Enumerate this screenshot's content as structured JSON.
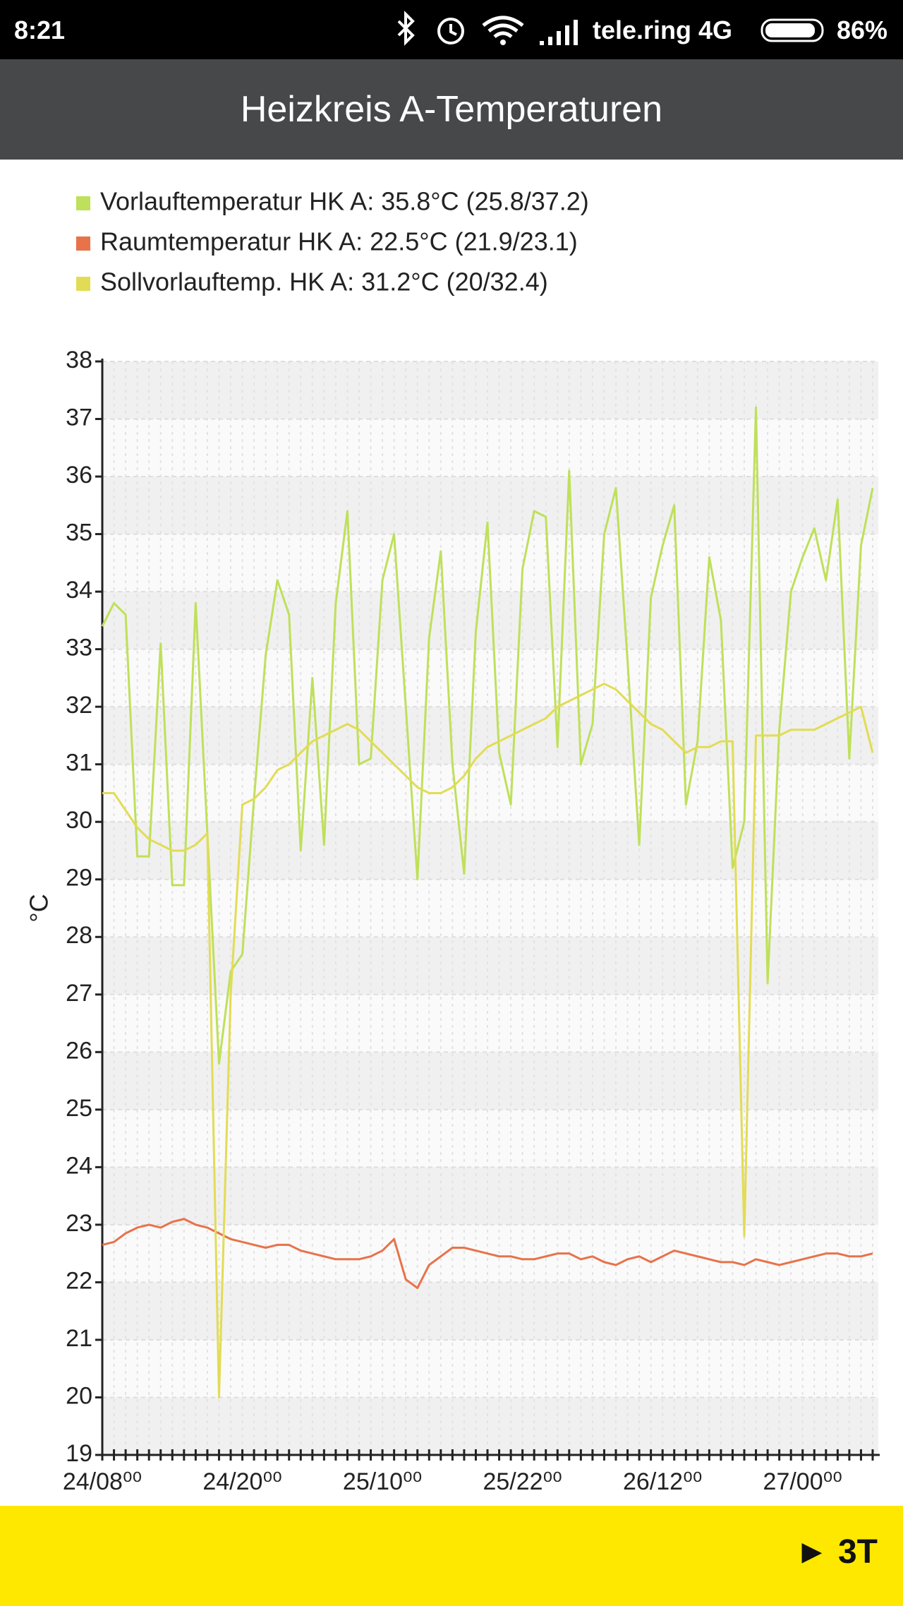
{
  "status_bar": {
    "time": "8:21",
    "carrier": "tele.ring 4G",
    "battery": "86%"
  },
  "header": {
    "title": "Heizkreis A-Temperaturen"
  },
  "chart_data": {
    "type": "line",
    "ylabel": "°C",
    "categories": [
      "24/08⁰⁰",
      null,
      null,
      null,
      null,
      null,
      null,
      null,
      null,
      null,
      null,
      null,
      "24/20⁰⁰",
      null,
      null,
      null,
      null,
      null,
      null,
      null,
      null,
      null,
      null,
      null,
      "25/10⁰⁰",
      null,
      null,
      null,
      null,
      null,
      null,
      null,
      null,
      null,
      null,
      null,
      "25/22⁰⁰",
      null,
      null,
      null,
      null,
      null,
      null,
      null,
      null,
      null,
      null,
      null,
      "26/12⁰⁰",
      null,
      null,
      null,
      null,
      null,
      null,
      null,
      null,
      null,
      null,
      null,
      "27/00⁰⁰",
      null,
      null,
      null,
      null,
      null,
      null
    ],
    "series": [
      {
        "name": "Vorlauftemperatur HK A: 35.8°C (25.8/37.2)",
        "color": "#bfe05a",
        "values": [
          33.4,
          33.8,
          33.6,
          29.4,
          29.4,
          33.1,
          28.9,
          28.9,
          33.8,
          29.8,
          25.8,
          27.4,
          27.7,
          30.4,
          32.9,
          34.2,
          33.6,
          29.5,
          32.5,
          29.6,
          33.8,
          35.4,
          31.0,
          31.1,
          34.2,
          35.0,
          32.0,
          29.0,
          33.2,
          34.7,
          31.0,
          29.1,
          33.3,
          35.2,
          31.2,
          30.3,
          34.4,
          35.4,
          35.3,
          31.3,
          36.1,
          31.0,
          31.7,
          35.0,
          35.8,
          32.8,
          29.6,
          33.9,
          34.8,
          35.5,
          30.3,
          31.4,
          34.6,
          33.5,
          29.2,
          30.0,
          37.2,
          27.2,
          31.6,
          34.0,
          34.6,
          35.1,
          34.2,
          35.6,
          31.1,
          34.8,
          35.8
        ]
      },
      {
        "name": "Raumtemperatur HK A: 22.5°C (21.9/23.1)",
        "color": "#e8724a",
        "values": [
          22.65,
          22.7,
          22.85,
          22.95,
          23.0,
          22.95,
          23.05,
          23.1,
          23.0,
          22.95,
          22.85,
          22.75,
          22.7,
          22.65,
          22.6,
          22.65,
          22.65,
          22.55,
          22.5,
          22.45,
          22.4,
          22.4,
          22.4,
          22.45,
          22.55,
          22.75,
          22.05,
          21.9,
          22.3,
          22.45,
          22.6,
          22.6,
          22.55,
          22.5,
          22.45,
          22.45,
          22.4,
          22.4,
          22.45,
          22.5,
          22.5,
          22.4,
          22.45,
          22.35,
          22.3,
          22.4,
          22.45,
          22.35,
          22.45,
          22.55,
          22.5,
          22.45,
          22.4,
          22.35,
          22.35,
          22.3,
          22.4,
          22.35,
          22.3,
          22.35,
          22.4,
          22.45,
          22.5,
          22.5,
          22.45,
          22.45,
          22.5
        ]
      },
      {
        "name": "Sollvorlauftemp. HK A: 31.2°C (20/32.4)",
        "color": "#e2dc55",
        "values": [
          30.5,
          30.5,
          30.2,
          29.9,
          29.7,
          29.6,
          29.5,
          29.5,
          29.6,
          29.8,
          20.0,
          27.0,
          30.3,
          30.4,
          30.6,
          30.9,
          31.0,
          31.2,
          31.4,
          31.5,
          31.6,
          31.7,
          31.6,
          31.4,
          31.2,
          31.0,
          30.8,
          30.6,
          30.5,
          30.5,
          30.6,
          30.8,
          31.1,
          31.3,
          31.4,
          31.5,
          31.6,
          31.7,
          31.8,
          32.0,
          32.1,
          32.2,
          32.3,
          32.4,
          32.3,
          32.1,
          31.9,
          31.7,
          31.6,
          31.4,
          31.2,
          31.3,
          31.3,
          31.4,
          31.4,
          22.8,
          31.5,
          31.5,
          31.5,
          31.6,
          31.6,
          31.6,
          31.7,
          31.8,
          31.9,
          32.0,
          31.2
        ]
      }
    ],
    "ylim": [
      19,
      38
    ],
    "yticks": [
      19,
      20,
      21,
      22,
      23,
      24,
      25,
      26,
      27,
      28,
      29,
      30,
      31,
      32,
      33,
      34,
      35,
      36,
      37,
      38
    ],
    "grid": true
  },
  "footer": {
    "button": "► 3T"
  }
}
